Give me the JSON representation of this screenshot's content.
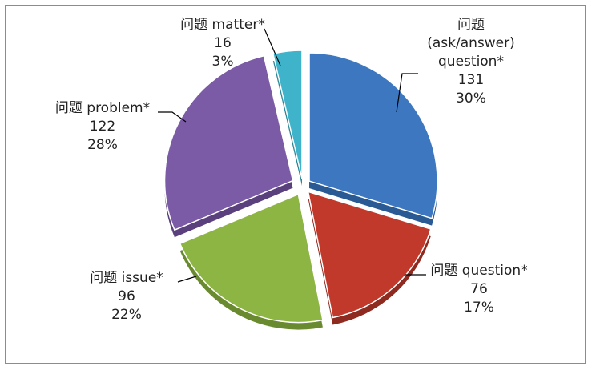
{
  "chart_data": {
    "type": "pie",
    "title": "",
    "slices": [
      {
        "category": "问题 (ask/answer) question*",
        "label_lines": [
          "问题",
          "(ask/answer)",
          "question*"
        ],
        "value": 131,
        "percent": "30%",
        "color": "#3d77bf",
        "dark": "#2a5a94"
      },
      {
        "category": "问题 question*",
        "label_lines": [
          "问题 question*"
        ],
        "value": 76,
        "percent": "17%",
        "color": "#c0392b",
        "dark": "#8e2a20"
      },
      {
        "category": "问题 issue*",
        "label_lines": [
          "问题 issue*"
        ],
        "value": 96,
        "percent": "22%",
        "color": "#8db543",
        "dark": "#6a8a2f"
      },
      {
        "category": "问题 problem*",
        "label_lines": [
          "问题 problem*"
        ],
        "value": 122,
        "percent": "28%",
        "color": "#7b5aa6",
        "dark": "#5a407c"
      },
      {
        "category": "问题 matter*",
        "label_lines": [
          "问题 matter*"
        ],
        "value": 16,
        "percent": "3%",
        "color": "#3fb3c9",
        "dark": "#2c8597"
      }
    ],
    "legend": "none",
    "data_labels": "category, value, percent"
  }
}
